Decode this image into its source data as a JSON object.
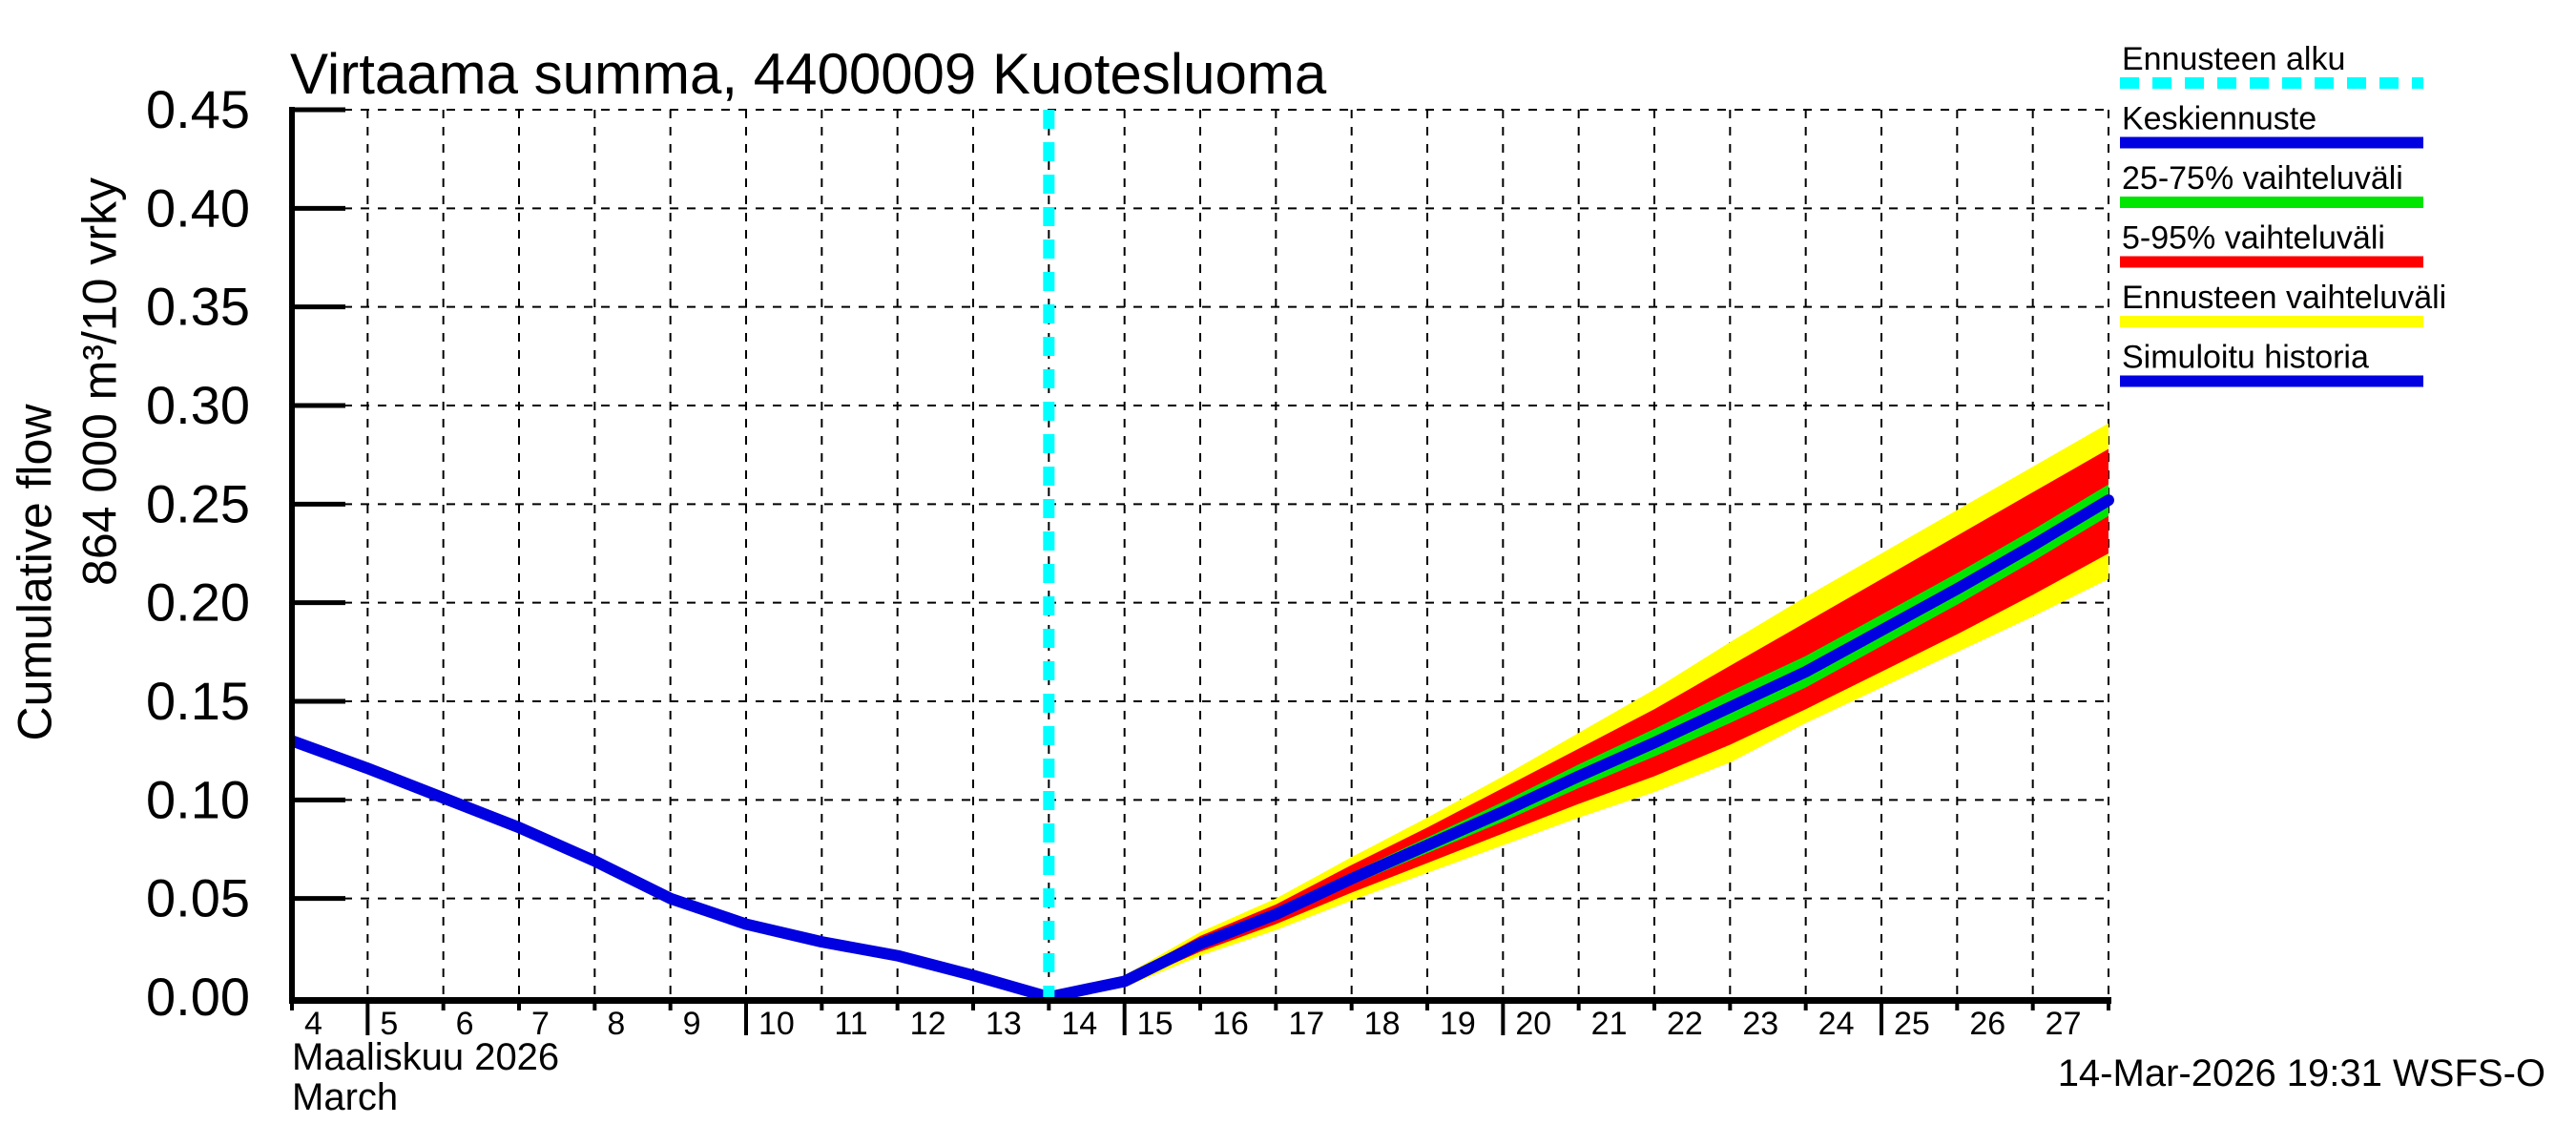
{
  "title": "Virtaama summa, 4400009 Kuotesluoma",
  "timestamp": "14-Mar-2026 19:31 WSFS-O",
  "forecast_start_day": 14,
  "y_axis": {
    "label_outer": "Cumulative flow",
    "label_inner": "864 000 m³/10 vrky",
    "tick_labels": [
      "0.00",
      "0.05",
      "0.10",
      "0.15",
      "0.20",
      "0.25",
      "0.30",
      "0.35",
      "0.40",
      "0.45"
    ],
    "min": 0,
    "max": 0.45,
    "tick_step": 0.05
  },
  "x_axis": {
    "month_fi": "Maaliskuu 2026",
    "month_en": "March",
    "first_day": 4,
    "last_day": 28,
    "tick_labels": [
      "4",
      "5",
      "6",
      "7",
      "8",
      "9",
      "10",
      "11",
      "12",
      "13",
      "14",
      "15",
      "16",
      "17",
      "18",
      "19",
      "20",
      "21",
      "22",
      "23",
      "24",
      "25",
      "26",
      "27"
    ]
  },
  "legend": [
    {
      "label": "Ennusteen alku",
      "color": "#00ffff",
      "style": "dashed-line"
    },
    {
      "label": "Keskiennuste",
      "color": "#0000e0",
      "style": "bar"
    },
    {
      "label": "25-75% vaihteluväli",
      "color": "#00e600",
      "style": "bar"
    },
    {
      "label": "5-95% vaihteluväli",
      "color": "#ff0000",
      "style": "bar"
    },
    {
      "label": "Ennusteen vaihteluväli",
      "color": "#ffff00",
      "style": "bar"
    },
    {
      "label": "Simuloitu historia",
      "color": "#0000e0",
      "style": "bar"
    }
  ],
  "colors": {
    "history_line": "#0000e0",
    "median_line": "#0000e0",
    "band_25_75": "#00e600",
    "band_5_95": "#ff0000",
    "band_range": "#ffff00",
    "forecast_start": "#00ffff",
    "grid": "#000000",
    "axis": "#000000"
  },
  "chart_data": {
    "type": "line",
    "title": "Virtaama summa, 4400009 Kuotesluoma",
    "xlabel": "Maaliskuu 2026 / March",
    "ylabel": "Cumulative flow, 864 000 m³/10 vrky",
    "x_range": [
      4,
      28
    ],
    "y_range": [
      0,
      0.45
    ],
    "grid": "dashed",
    "legend_position": "top-right-outside",
    "history": {
      "name": "Simuloitu historia",
      "days": [
        4,
        5,
        6,
        7,
        8,
        9,
        10,
        11,
        12,
        13,
        14
      ],
      "values": [
        0.13,
        0.116,
        0.101,
        0.086,
        0.069,
        0.05,
        0.037,
        0.028,
        0.021,
        0.011,
        0.0
      ]
    },
    "forecast": {
      "name": "Keskiennuste",
      "days": [
        14,
        15,
        16,
        17,
        18,
        19,
        20,
        21,
        22,
        23,
        24,
        25,
        26,
        27,
        28
      ],
      "median": [
        0.0,
        0.008,
        0.027,
        0.042,
        0.06,
        0.077,
        0.094,
        0.112,
        0.129,
        0.147,
        0.165,
        0.186,
        0.207,
        0.229,
        0.252
      ],
      "p25": [
        0.0,
        0.007,
        0.025,
        0.04,
        0.057,
        0.073,
        0.089,
        0.106,
        0.122,
        0.139,
        0.157,
        0.178,
        0.199,
        0.221,
        0.244
      ],
      "p75": [
        0.0,
        0.009,
        0.029,
        0.044,
        0.063,
        0.081,
        0.099,
        0.118,
        0.136,
        0.155,
        0.173,
        0.194,
        0.215,
        0.237,
        0.26
      ],
      "p05": [
        0.0,
        0.006,
        0.023,
        0.037,
        0.053,
        0.068,
        0.083,
        0.098,
        0.112,
        0.128,
        0.146,
        0.165,
        0.184,
        0.204,
        0.225
      ],
      "p95": [
        0.0,
        0.01,
        0.031,
        0.047,
        0.067,
        0.086,
        0.106,
        0.126,
        0.146,
        0.168,
        0.19,
        0.212,
        0.234,
        0.256,
        0.278
      ],
      "min": [
        0.0,
        0.005,
        0.021,
        0.034,
        0.049,
        0.063,
        0.077,
        0.091,
        0.104,
        0.119,
        0.139,
        0.157,
        0.175,
        0.193,
        0.212
      ],
      "max": [
        0.0,
        0.011,
        0.033,
        0.05,
        0.071,
        0.091,
        0.112,
        0.134,
        0.156,
        0.18,
        0.203,
        0.225,
        0.247,
        0.269,
        0.291
      ]
    }
  }
}
